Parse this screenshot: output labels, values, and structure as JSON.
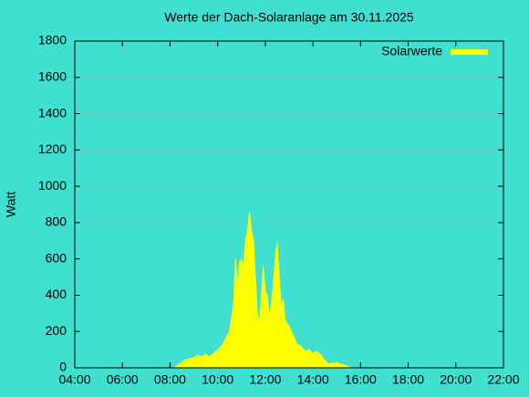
{
  "chart_data": {
    "type": "area",
    "title": "Werte der Dach-Solaranlage am 30.11.2025",
    "y_label": "Watt",
    "x": [
      "08:10",
      "08:20",
      "08:30",
      "08:40",
      "08:50",
      "09:00",
      "09:10",
      "09:20",
      "09:30",
      "09:40",
      "09:50",
      "10:00",
      "10:10",
      "10:20",
      "10:30",
      "10:40",
      "10:45",
      "10:50",
      "10:55",
      "11:00",
      "11:05",
      "11:10",
      "11:15",
      "11:20",
      "11:25",
      "11:30",
      "11:35",
      "11:40",
      "11:45",
      "11:50",
      "11:55",
      "12:00",
      "12:05",
      "12:10",
      "12:15",
      "12:20",
      "12:25",
      "12:30",
      "12:35",
      "12:40",
      "12:45",
      "12:50",
      "13:00",
      "13:10",
      "13:20",
      "13:30",
      "13:40",
      "13:50",
      "14:00",
      "14:10",
      "14:20",
      "14:30",
      "14:40",
      "14:50",
      "15:00",
      "15:10",
      "15:20",
      "15:30",
      "15:40"
    ],
    "series": [
      {
        "name": "Solarwerte",
        "color": "#ffff00",
        "values": [
          0,
          15,
          30,
          45,
          50,
          55,
          70,
          60,
          75,
          60,
          80,
          100,
          120,
          160,
          200,
          350,
          600,
          450,
          580,
          600,
          550,
          700,
          750,
          855,
          760,
          700,
          500,
          300,
          240,
          400,
          560,
          420,
          400,
          280,
          340,
          450,
          600,
          690,
          500,
          330,
          380,
          260,
          230,
          180,
          130,
          120,
          90,
          100,
          80,
          90,
          70,
          40,
          20,
          25,
          30,
          20,
          15,
          5,
          0
        ]
      }
    ],
    "xlim": [
      "04:00",
      "22:00"
    ],
    "xticks": [
      "04:00",
      "06:00",
      "08:00",
      "10:00",
      "12:00",
      "14:00",
      "16:00",
      "18:00",
      "20:00",
      "22:00"
    ],
    "ylim": [
      0,
      1800
    ],
    "yticks": [
      0,
      200,
      400,
      600,
      800,
      1000,
      1200,
      1400,
      1600,
      1800
    ],
    "grid": true,
    "legend": "top-right"
  }
}
